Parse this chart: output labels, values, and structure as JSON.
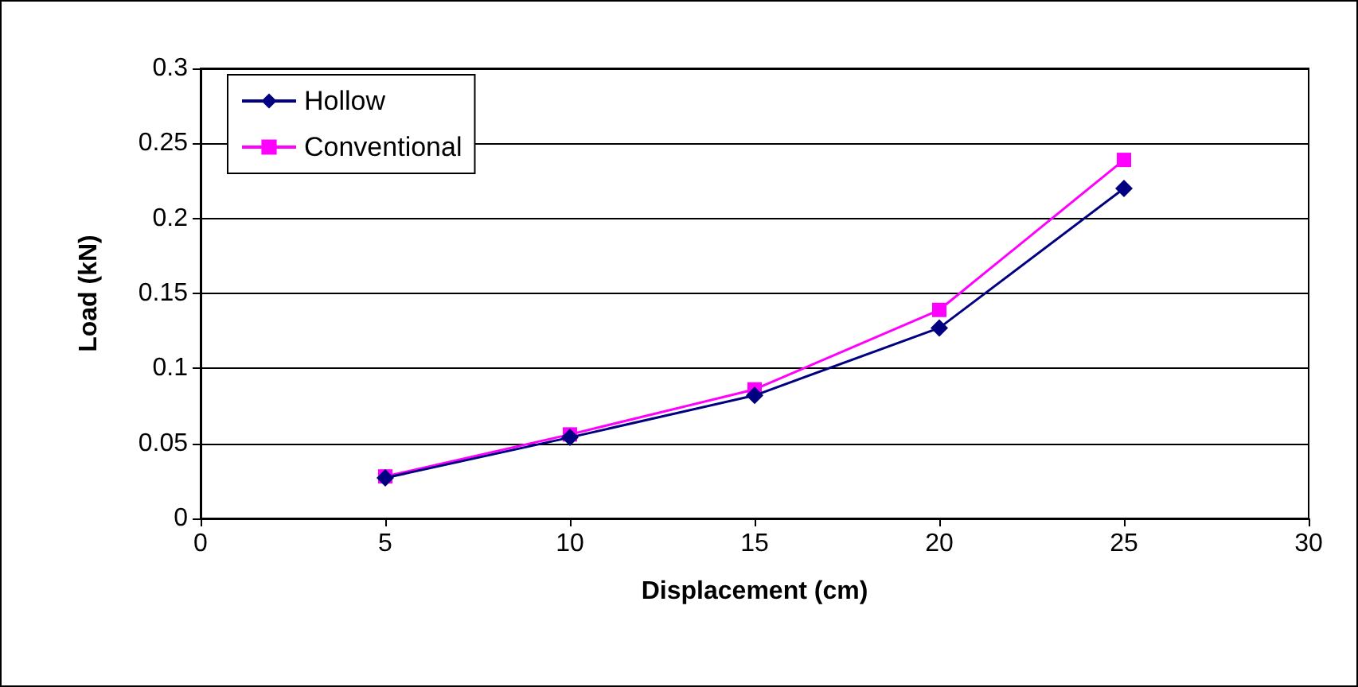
{
  "chart_data": {
    "type": "line",
    "xlabel": "Displacement (cm)",
    "ylabel": "Load (kN)",
    "x": [
      5,
      10,
      15,
      20,
      25
    ],
    "series": [
      {
        "name": "Hollow",
        "color": "#000080",
        "marker": "diamond",
        "values": [
          0.027,
          0.054,
          0.082,
          0.127,
          0.22
        ]
      },
      {
        "name": "Conventional",
        "color": "#ff00ff",
        "marker": "square",
        "values": [
          0.028,
          0.056,
          0.086,
          0.139,
          0.239
        ]
      }
    ],
    "xlim": [
      0,
      30
    ],
    "xticks": [
      0,
      5,
      10,
      15,
      20,
      25,
      30
    ],
    "ylim": [
      0,
      0.3
    ],
    "yticks": [
      0,
      0.05,
      0.1,
      0.15,
      0.2,
      0.25,
      0.3
    ],
    "grid": "y",
    "legend": "top left",
    "line_style": "solid"
  }
}
